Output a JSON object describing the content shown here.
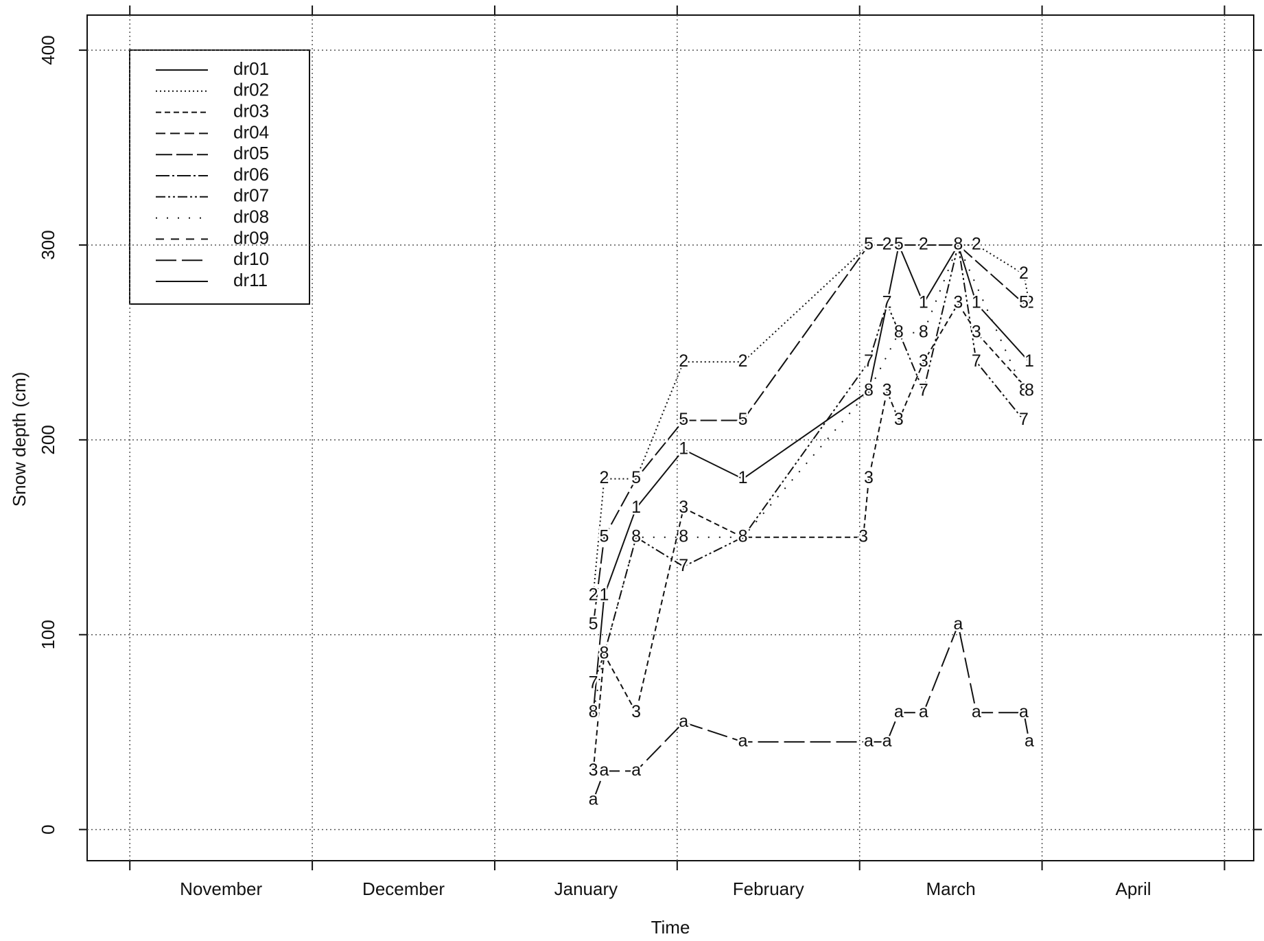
{
  "chart_data": {
    "type": "line",
    "x_label": "Time",
    "y_label": "Snow depth (cm)",
    "categories": [
      "November",
      "December",
      "January",
      "February",
      "March",
      "April"
    ],
    "xlim": [
      -0.234,
      6.16
    ],
    "ylim": [
      -16,
      418
    ],
    "yticks": [
      0,
      100,
      200,
      300,
      400
    ],
    "grid": true,
    "legend": "top-left",
    "series": [
      {
        "name": "dr01",
        "symbol": "1",
        "color": "#111111",
        "dash": "none",
        "x": [
          2.54,
          2.6,
          2.775,
          3.035,
          3.36,
          4.05,
          4.15,
          4.215,
          4.35,
          4.54,
          4.64,
          4.93
        ],
        "values": [
          60,
          120,
          165,
          195,
          180,
          225,
          270,
          300,
          270,
          300,
          270,
          240
        ]
      },
      {
        "name": "dr02",
        "symbol": "2",
        "color": "#111111",
        "dash": "2,4",
        "x": [
          2.54,
          2.6,
          2.775,
          3.035,
          3.36,
          4.05,
          4.15,
          4.35,
          4.64,
          4.9,
          4.93
        ],
        "values": [
          120,
          180,
          180,
          240,
          240,
          300,
          300,
          300,
          300,
          285,
          270
        ]
      },
      {
        "name": "dr03",
        "symbol": "3",
        "color": "#111111",
        "dash": "8,5",
        "x": [
          2.54,
          2.6,
          2.775,
          3.035,
          3.36,
          4.02,
          4.05,
          4.15,
          4.215,
          4.35,
          4.54,
          4.64,
          4.93
        ],
        "values": [
          30,
          90,
          60,
          165,
          150,
          150,
          180,
          225,
          210,
          240,
          270,
          255,
          225
        ]
      },
      {
        "name": "dr04",
        "symbol": "4",
        "color": "#111111",
        "dash": "14,7",
        "x": [],
        "values": []
      },
      {
        "name": "dr05",
        "symbol": "5",
        "color": "#111111",
        "dash": "24,6",
        "x": [
          2.54,
          2.6,
          2.775,
          3.035,
          3.36,
          4.05,
          4.215,
          4.54,
          4.9
        ],
        "values": [
          105,
          150,
          180,
          210,
          210,
          300,
          300,
          300,
          270
        ]
      },
      {
        "name": "dr06",
        "symbol": "6",
        "color": "#111111",
        "dash": "20,4,3,4",
        "x": [],
        "values": []
      },
      {
        "name": "dr07",
        "symbol": "7",
        "color": "#111111",
        "dash": "14,4,3,4,3,4",
        "x": [
          2.54,
          2.6,
          2.775,
          3.035,
          3.36,
          4.05,
          4.15,
          4.35,
          4.54,
          4.64,
          4.9
        ],
        "values": [
          75,
          90,
          150,
          135,
          150,
          240,
          270,
          225,
          300,
          240,
          210
        ]
      },
      {
        "name": "dr08",
        "symbol": "8",
        "color": "#111111",
        "dash": "2,14",
        "x": [
          2.54,
          2.6,
          2.775,
          3.035,
          3.36,
          4.05,
          4.215,
          4.35,
          4.54,
          4.9,
          4.93
        ],
        "values": [
          60,
          90,
          150,
          150,
          150,
          225,
          255,
          255,
          300,
          225,
          225
        ]
      },
      {
        "name": "dr09",
        "symbol": "9",
        "color": "#111111",
        "dash": "12,10",
        "x": [],
        "values": []
      },
      {
        "name": "dr10",
        "symbol": "a",
        "color": "#111111",
        "dash": "30,8",
        "x": [
          2.54,
          2.6,
          2.775,
          3.035,
          3.36,
          4.05,
          4.15,
          4.215,
          4.35,
          4.54,
          4.64,
          4.9,
          4.93
        ],
        "values": [
          15,
          30,
          30,
          55,
          45,
          45,
          45,
          60,
          60,
          105,
          60,
          60,
          45
        ]
      },
      {
        "name": "dr11",
        "symbol": "b",
        "color": "#111111",
        "dash": "none",
        "x": [],
        "values": []
      }
    ]
  }
}
